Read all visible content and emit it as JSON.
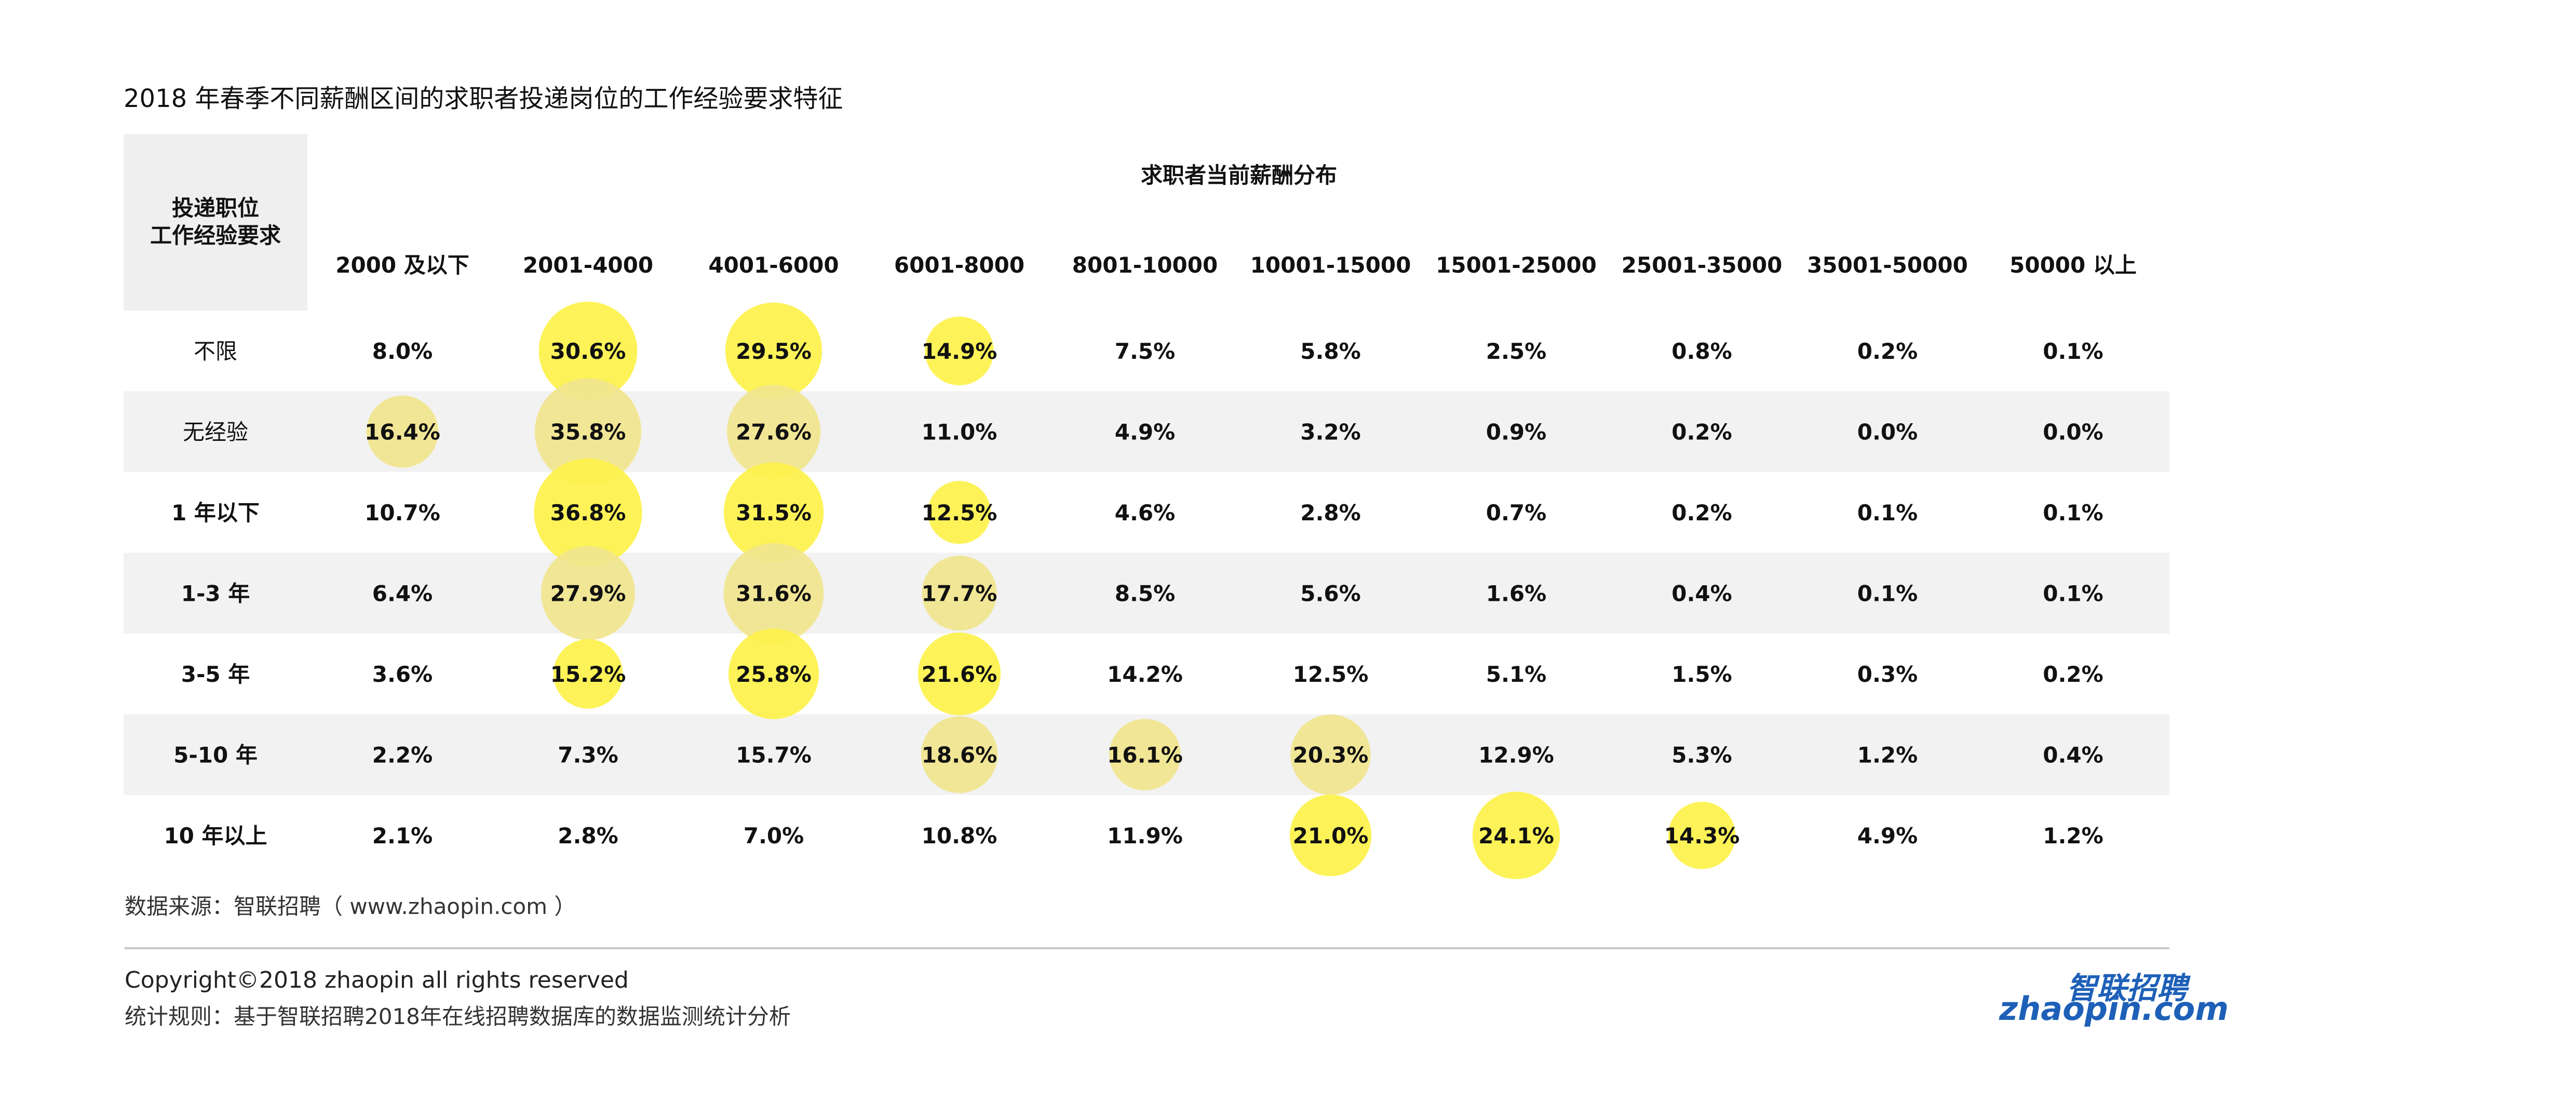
{
  "title": "2018 年春季不同薪酬区间的求职者投递岗位的工作经验要求特征",
  "source": "数据来源：智联招聘（ www.zhaopin.com ）",
  "copyright": "Copyright©2018 zhaopin all rights reserved",
  "stat_rule": "统计规则：基于智联招聘2018年在线招聘数据库的数据监测统计分析",
  "logo": {
    "cn": "智联招聘",
    "en": "zhaopin.com"
  },
  "chart_data": {
    "type": "table",
    "row_header": [
      "投递职位",
      "工作经验要求"
    ],
    "column_group_label": "求职者当前薪酬分布",
    "columns": [
      "2000 及以下",
      "2001-4000",
      "4001-6000",
      "6001-8000",
      "8001-10000",
      "10001-15000",
      "15001-25000",
      "25001-35000",
      "35001-50000",
      "50000 以上"
    ],
    "rows": [
      "不限",
      "无经验",
      "1 年以下",
      "1-3 年",
      "3-5 年",
      "5-10 年",
      "10 年以上"
    ],
    "values": [
      [
        8.0,
        30.6,
        29.5,
        14.9,
        7.5,
        5.8,
        2.5,
        0.8,
        0.2,
        0.1
      ],
      [
        16.4,
        35.8,
        27.6,
        11.0,
        4.9,
        3.2,
        0.9,
        0.2,
        0.0,
        0.0
      ],
      [
        10.7,
        36.8,
        31.5,
        12.5,
        4.6,
        2.8,
        0.7,
        0.2,
        0.1,
        0.1
      ],
      [
        6.4,
        27.9,
        31.6,
        17.7,
        8.5,
        5.6,
        1.6,
        0.4,
        0.1,
        0.1
      ],
      [
        3.6,
        15.2,
        25.8,
        21.6,
        14.2,
        12.5,
        5.1,
        1.5,
        0.3,
        0.2
      ],
      [
        2.2,
        7.3,
        15.7,
        18.6,
        16.1,
        20.3,
        12.9,
        5.3,
        1.2,
        0.4
      ],
      [
        2.1,
        2.8,
        7.0,
        10.8,
        11.9,
        21.0,
        24.1,
        14.3,
        4.9,
        1.2
      ]
    ],
    "unit": "%",
    "highlighted": [
      [
        false,
        true,
        true,
        true,
        false,
        false,
        false,
        false,
        false,
        false
      ],
      [
        true,
        true,
        true,
        false,
        false,
        false,
        false,
        false,
        false,
        false
      ],
      [
        false,
        true,
        true,
        true,
        false,
        false,
        false,
        false,
        false,
        false
      ],
      [
        false,
        true,
        true,
        true,
        false,
        false,
        false,
        false,
        false,
        false
      ],
      [
        false,
        true,
        true,
        true,
        false,
        false,
        false,
        false,
        false,
        false
      ],
      [
        false,
        false,
        false,
        true,
        true,
        true,
        false,
        false,
        false,
        false
      ],
      [
        false,
        false,
        false,
        false,
        false,
        true,
        true,
        true,
        false,
        false
      ]
    ],
    "colors": {
      "bubble_on_white": "#fdf24a",
      "bubble_on_gray": "#f1e58e",
      "stripe": "#f2f2f2",
      "header_cell": "#efefef"
    }
  }
}
